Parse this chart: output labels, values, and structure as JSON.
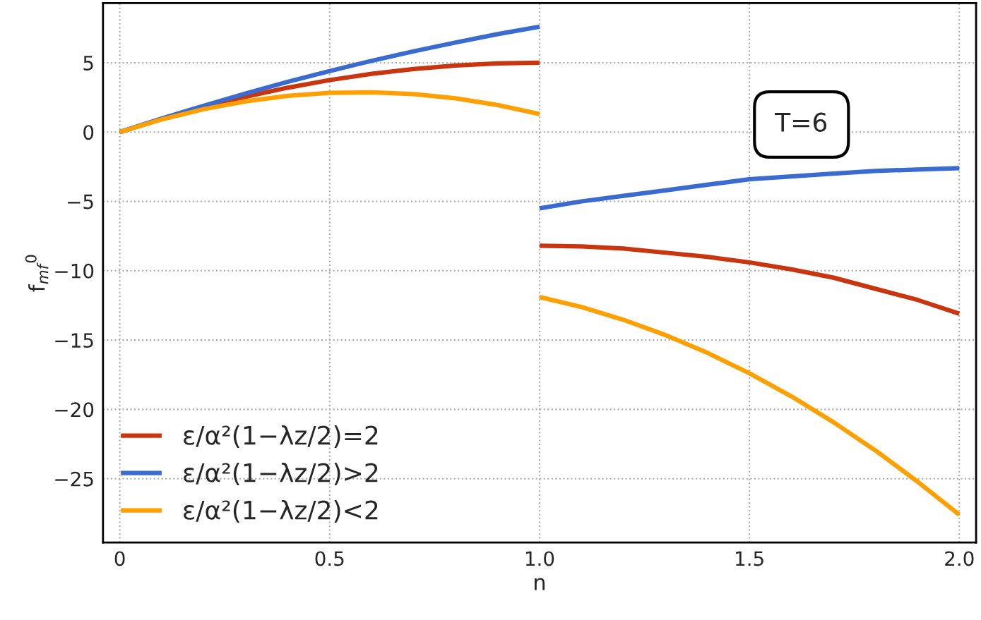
{
  "chart_data": {
    "type": "line",
    "xlabel": "n",
    "ylabel": "f$_{mf}$$^{0}$",
    "annotations": [
      "T=6"
    ],
    "series": [
      {
        "name": "ε/α²(1−λz/2)=2",
        "color": "#c8350f",
        "x": [
          0,
          0.1,
          0.2,
          0.3,
          0.4,
          0.5,
          0.6,
          0.7,
          0.8,
          0.9,
          1.0
        ],
        "values": [
          0,
          0.95,
          1.8,
          2.55,
          3.2,
          3.75,
          4.2,
          4.55,
          4.8,
          4.95,
          5.0
        ]
      },
      {
        "name": "ε/α²(1−λz/2)>2",
        "color": "#3a6bd1",
        "x": [
          0,
          0.1,
          0.2,
          0.3,
          0.4,
          0.5,
          0.6,
          0.7,
          0.8,
          0.9,
          1.0
        ],
        "values": [
          0,
          0.98,
          1.9,
          2.78,
          3.62,
          4.4,
          5.14,
          5.82,
          6.46,
          7.06,
          7.6
        ]
      },
      {
        "name": "ε/α²(1−λz/2)<2",
        "color": "#ff9f00",
        "x": [
          0,
          0.1,
          0.2,
          0.3,
          0.4,
          0.5,
          0.6,
          0.7,
          0.8,
          0.9,
          1.0
        ],
        "values": [
          0,
          0.91,
          1.65,
          2.22,
          2.61,
          2.83,
          2.87,
          2.74,
          2.43,
          1.95,
          1.3
        ]
      },
      {
        "color": "#c8350f",
        "x": [
          1.0,
          1.1,
          1.2,
          1.3,
          1.4,
          1.5,
          1.6,
          1.7,
          1.8,
          1.9,
          2.0
        ],
        "values": [
          -8.2,
          -8.25,
          -8.4,
          -8.7,
          -9.0,
          -9.4,
          -9.9,
          -10.5,
          -11.3,
          -12.1,
          -13.1
        ]
      },
      {
        "color": "#3a6bd1",
        "x": [
          1.0,
          1.1,
          1.2,
          1.3,
          1.4,
          1.5,
          1.6,
          1.7,
          1.8,
          1.9,
          2.0
        ],
        "values": [
          -5.5,
          -5.0,
          -4.6,
          -4.2,
          -3.8,
          -3.4,
          -3.2,
          -3.0,
          -2.8,
          -2.7,
          -2.6
        ]
      },
      {
        "color": "#ff9f00",
        "x": [
          1.0,
          1.1,
          1.2,
          1.3,
          1.4,
          1.5,
          1.6,
          1.7,
          1.8,
          1.9,
          2.0
        ],
        "values": [
          -11.9,
          -12.62,
          -13.54,
          -14.64,
          -15.92,
          -17.4,
          -19.06,
          -20.92,
          -22.96,
          -25.2,
          -27.6
        ]
      }
    ],
    "xlim": [
      -0.04,
      2.04
    ],
    "ylim": [
      -29.6,
      9.3
    ],
    "xticks": [
      0,
      0.5,
      {
        "value": 1.0,
        "label": "1.0"
      },
      1.5,
      {
        "value": 2.0,
        "label": "2.0"
      }
    ],
    "yticks": [
      {
        "value": -25,
        "label": "−25"
      },
      {
        "value": -20,
        "label": "−20"
      },
      {
        "value": -15,
        "label": "−15"
      },
      {
        "value": -10,
        "label": "−10"
      },
      {
        "value": -5,
        "label": "−5"
      },
      0,
      5
    ],
    "grid": true,
    "legend": "bottom left",
    "marker": "none",
    "line_style": "solid"
  }
}
